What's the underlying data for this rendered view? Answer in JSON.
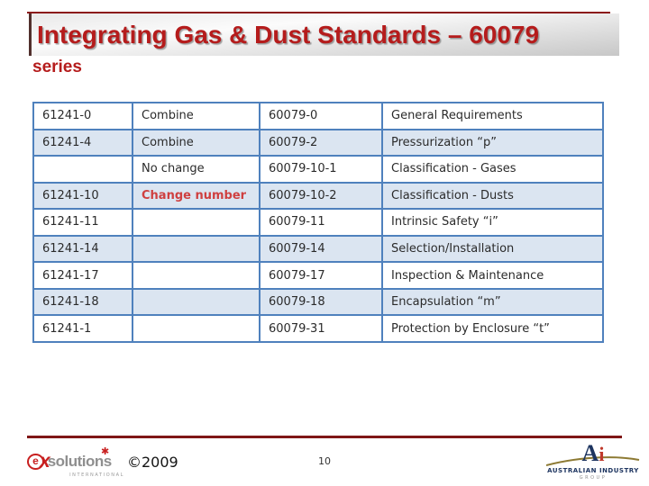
{
  "slide": {
    "title": "Integrating Gas & Dust Standards – 60079",
    "subtitle": "series",
    "page_number": "10",
    "copyright": "©2009"
  },
  "table": {
    "rows": [
      {
        "old_standard": "61241-0",
        "action": "Combine",
        "new_standard": "60079-0",
        "description": "General Requirements",
        "shaded": false,
        "action_emphasis": false
      },
      {
        "old_standard": "61241-4",
        "action": "Combine",
        "new_standard": "60079-2",
        "description": "Pressurization “p”",
        "shaded": true,
        "action_emphasis": false
      },
      {
        "old_standard": "",
        "action": "No change",
        "new_standard": "60079-10-1",
        "description": "Classification - Gases",
        "shaded": false,
        "action_emphasis": false
      },
      {
        "old_standard": "61241-10",
        "action": "Change number",
        "new_standard": "60079-10-2",
        "description": "Classification - Dusts",
        "shaded": true,
        "action_emphasis": true
      },
      {
        "old_standard": "61241-11",
        "action": "",
        "new_standard": "60079-11",
        "description": "Intrinsic Safety “i”",
        "shaded": false,
        "action_emphasis": false
      },
      {
        "old_standard": "61241-14",
        "action": "",
        "new_standard": "60079-14",
        "description": "Selection/Installation",
        "shaded": true,
        "action_emphasis": false
      },
      {
        "old_standard": "61241-17",
        "action": "",
        "new_standard": "60079-17",
        "description": "Inspection & Maintenance",
        "shaded": false,
        "action_emphasis": false
      },
      {
        "old_standard": "61241-18",
        "action": "",
        "new_standard": "60079-18",
        "description": "Encapsulation “m”",
        "shaded": true,
        "action_emphasis": false
      },
      {
        "old_standard": "61241-1",
        "action": "",
        "new_standard": "60079-31",
        "description": "Protection by Enclosure “t”",
        "shaded": false,
        "action_emphasis": false
      }
    ]
  },
  "logos": {
    "ex_solutions": {
      "e": "e",
      "x": "x",
      "solutions": "solutions",
      "sub": "INTERNATIONAL",
      "star": "✱"
    },
    "australian_industry": {
      "a": "A",
      "i": "i",
      "line1": "AUSTRALIAN INDUSTRY",
      "line2": "GROUP"
    }
  },
  "colors": {
    "title_red": "#b51c1c",
    "table_border": "#4f81bd",
    "row_shade": "#dbe5f1",
    "footer_line": "#7f1616",
    "action_red": "#cf4040"
  }
}
